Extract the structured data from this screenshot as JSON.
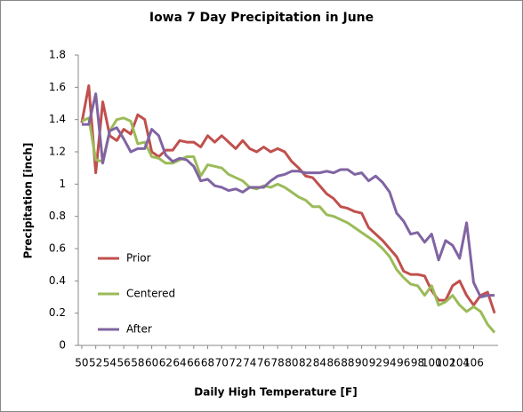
{
  "chart_data": {
    "type": "line",
    "title": "Iowa 7 Day Precipitation in June",
    "x_label": "Daily High Temperature [F]",
    "y_label": "Precipitation [inch]",
    "x": [
      50,
      51,
      52,
      53,
      54,
      55,
      56,
      57,
      58,
      59,
      60,
      61,
      62,
      63,
      64,
      65,
      66,
      67,
      68,
      69,
      70,
      71,
      72,
      73,
      74,
      75,
      76,
      77,
      78,
      79,
      80,
      81,
      82,
      83,
      84,
      85,
      86,
      87,
      88,
      89,
      90,
      91,
      92,
      93,
      94,
      95,
      96,
      97,
      98,
      99,
      100,
      101,
      102,
      103,
      104,
      105,
      106,
      107,
      108,
      109
    ],
    "series": [
      {
        "name": "Prior",
        "color": "#c0504d",
        "values": [
          1.38,
          1.61,
          1.07,
          1.51,
          1.3,
          1.27,
          1.34,
          1.31,
          1.43,
          1.4,
          1.2,
          1.17,
          1.21,
          1.21,
          1.27,
          1.26,
          1.26,
          1.23,
          1.3,
          1.26,
          1.3,
          1.26,
          1.22,
          1.27,
          1.22,
          1.2,
          1.23,
          1.2,
          1.22,
          1.2,
          1.14,
          1.1,
          1.05,
          1.04,
          0.99,
          0.94,
          0.91,
          0.86,
          0.85,
          0.83,
          0.82,
          0.73,
          0.69,
          0.65,
          0.6,
          0.55,
          0.46,
          0.44,
          0.44,
          0.43,
          0.34,
          0.28,
          0.28,
          0.37,
          0.4,
          0.31,
          0.25,
          0.31,
          0.33,
          0.2
        ]
      },
      {
        "name": "Centered",
        "color": "#9bbb59",
        "values": [
          1.39,
          1.41,
          1.15,
          1.14,
          1.33,
          1.4,
          1.41,
          1.39,
          1.25,
          1.26,
          1.17,
          1.16,
          1.13,
          1.13,
          1.15,
          1.17,
          1.17,
          1.05,
          1.12,
          1.11,
          1.1,
          1.06,
          1.04,
          1.02,
          0.98,
          0.97,
          0.99,
          0.98,
          1.0,
          0.98,
          0.95,
          0.92,
          0.9,
          0.86,
          0.86,
          0.81,
          0.8,
          0.78,
          0.76,
          0.73,
          0.7,
          0.67,
          0.64,
          0.6,
          0.55,
          0.47,
          0.42,
          0.38,
          0.37,
          0.31,
          0.37,
          0.25,
          0.27,
          0.31,
          0.25,
          0.21,
          0.24,
          0.21,
          0.13,
          0.08
        ]
      },
      {
        "name": "After",
        "color": "#8064a2",
        "values": [
          1.37,
          1.37,
          1.56,
          1.13,
          1.33,
          1.35,
          1.28,
          1.2,
          1.22,
          1.22,
          1.34,
          1.3,
          1.18,
          1.14,
          1.16,
          1.15,
          1.11,
          1.02,
          1.03,
          0.99,
          0.98,
          0.96,
          0.97,
          0.95,
          0.98,
          0.98,
          0.98,
          1.02,
          1.05,
          1.06,
          1.08,
          1.08,
          1.07,
          1.07,
          1.07,
          1.08,
          1.07,
          1.09,
          1.09,
          1.06,
          1.07,
          1.02,
          1.05,
          1.01,
          0.95,
          0.82,
          0.77,
          0.69,
          0.7,
          0.64,
          0.69,
          0.53,
          0.65,
          0.62,
          0.54,
          0.76,
          0.39,
          0.3,
          0.31,
          0.31
        ]
      }
    ],
    "xlim": [
      49.5,
      109.5
    ],
    "xticks": [
      50,
      52,
      54,
      56,
      58,
      60,
      62,
      64,
      66,
      68,
      70,
      72,
      74,
      76,
      78,
      80,
      82,
      84,
      86,
      88,
      90,
      92,
      94,
      96,
      98,
      100,
      102,
      104,
      106
    ],
    "ylim": [
      0,
      1.8
    ],
    "yticks": [
      0,
      {
        "value": 0.2,
        "label": "0.2"
      },
      {
        "value": 0.4,
        "label": "0.4"
      },
      {
        "value": 0.6,
        "label": "0.6"
      },
      {
        "value": 0.8,
        "label": "0.8"
      },
      1,
      {
        "value": 1.2,
        "label": "1.2"
      },
      {
        "value": 1.4,
        "label": "1.4"
      },
      {
        "value": 1.6,
        "label": "1.6"
      },
      {
        "value": 1.8,
        "label": "1.8"
      }
    ],
    "grid": false,
    "legend": "left"
  }
}
